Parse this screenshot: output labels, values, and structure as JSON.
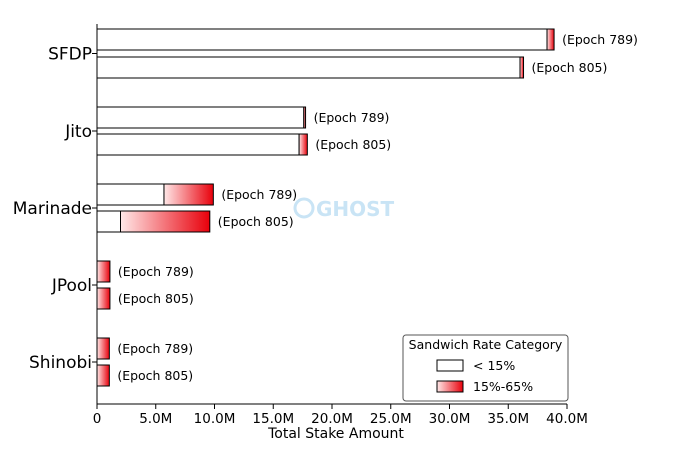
{
  "chart_data": {
    "type": "bar",
    "orientation": "horizontal",
    "stacked": true,
    "xlabel": "Total Stake Amount",
    "xlim": [
      0,
      40000000
    ],
    "xticks": [
      0,
      5000000,
      10000000,
      15000000,
      20000000,
      25000000,
      30000000,
      35000000,
      40000000
    ],
    "xtick_labels": [
      "0",
      "5.0M",
      "10.0M",
      "15.0M",
      "20.0M",
      "25.0M",
      "30.0M",
      "35.0M",
      "40.0M"
    ],
    "categories": [
      "SFDP",
      "Jito",
      "Marinade",
      "JPool",
      "Shinobi"
    ],
    "epochs": [
      "(Epoch 789)",
      "(Epoch 805)"
    ],
    "series": [
      {
        "name": "< 15%",
        "values_epoch_789": [
          38.3,
          17.6,
          5.7,
          0.0,
          0.0
        ],
        "values_epoch_805": [
          36.0,
          17.2,
          2.0,
          0.0,
          0.0
        ],
        "unit": "M"
      },
      {
        "name": "15%-65%",
        "values_epoch_789": [
          0.6,
          0.15,
          4.2,
          1.1,
          1.05
        ],
        "values_epoch_805": [
          0.3,
          0.7,
          7.6,
          1.1,
          1.05
        ],
        "unit": "M"
      }
    ],
    "grid": false,
    "legend": {
      "title": "Sandwich Rate Category",
      "position": "lower-right",
      "entries": [
        "< 15%",
        "15%-65%"
      ]
    },
    "colors": {
      "low": "#ffffff",
      "high_start": "#ffe8e8",
      "high_end": "#e8000b",
      "edge": "#000000"
    },
    "watermark": "GHOST"
  }
}
